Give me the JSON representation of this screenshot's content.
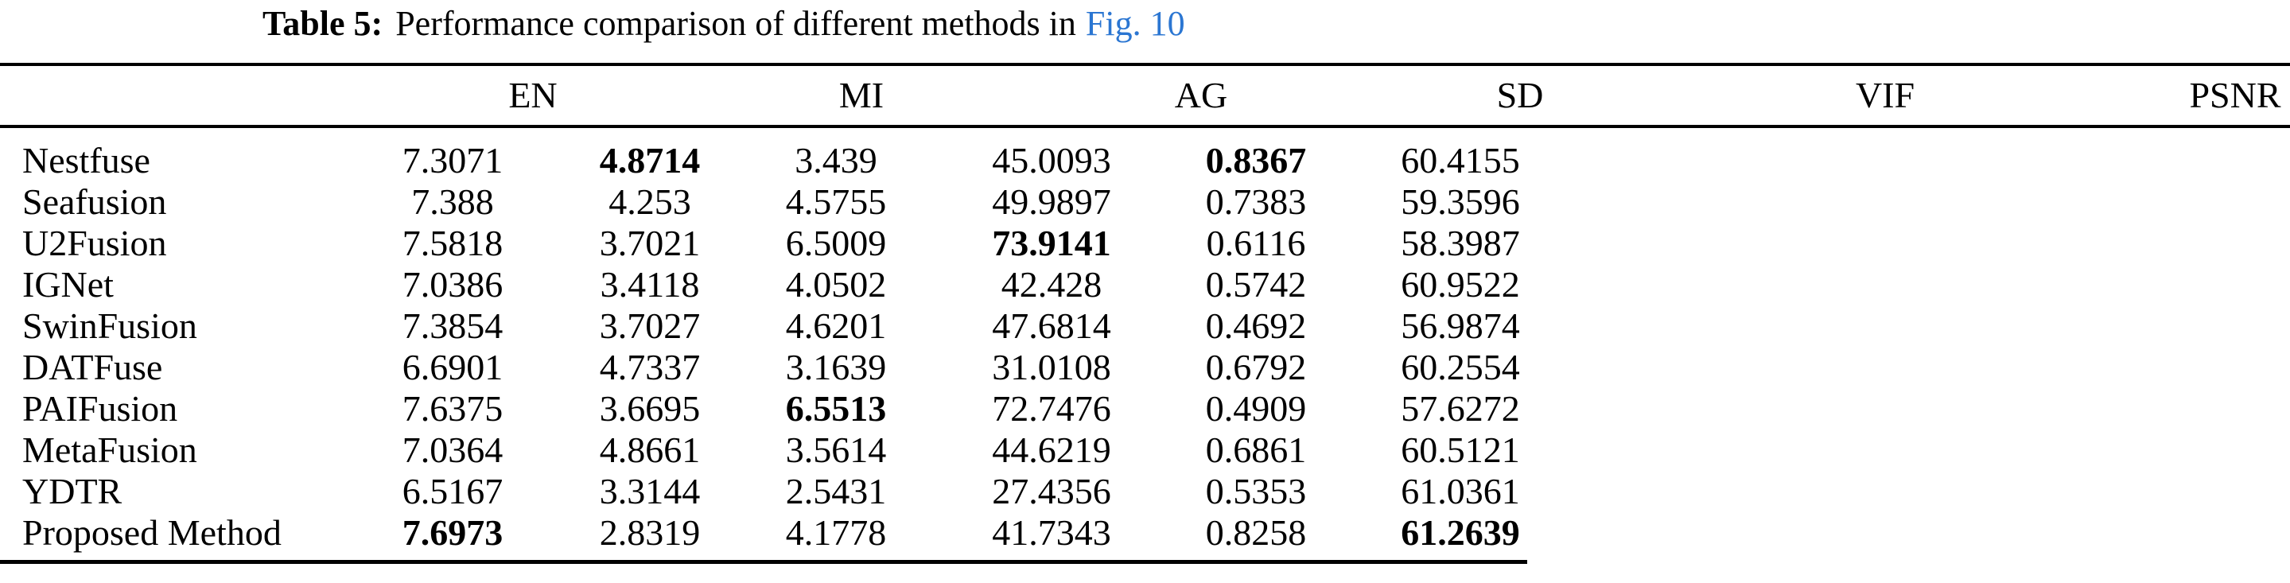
{
  "caption": {
    "label": "Table 5:",
    "text": "Performance comparison of different methods in",
    "link": "Fig. 10",
    "link_color": "#2b76d2"
  },
  "table": {
    "columns": [
      "EN",
      "MI",
      "AG",
      "SD",
      "VIF",
      "PSNR"
    ],
    "rows": [
      {
        "method": "Nestfuse",
        "values": [
          "7.3071",
          "4.8714",
          "3.439",
          "45.0093",
          "0.8367",
          "60.4155"
        ],
        "bold": [
          1,
          4
        ]
      },
      {
        "method": "Seafusion",
        "values": [
          "7.388",
          "4.253",
          "4.5755",
          "49.9897",
          "0.7383",
          "59.3596"
        ],
        "bold": []
      },
      {
        "method": "U2Fusion",
        "values": [
          "7.5818",
          "3.7021",
          "6.5009",
          "73.9141",
          "0.6116",
          "58.3987"
        ],
        "bold": [
          3
        ]
      },
      {
        "method": "IGNet",
        "values": [
          "7.0386",
          "3.4118",
          "4.0502",
          "42.428",
          "0.5742",
          "60.9522"
        ],
        "bold": []
      },
      {
        "method": "SwinFusion",
        "values": [
          "7.3854",
          "3.7027",
          "4.6201",
          "47.6814",
          "0.4692",
          "56.9874"
        ],
        "bold": []
      },
      {
        "method": "DATFuse",
        "values": [
          "6.6901",
          "4.7337",
          "3.1639",
          "31.0108",
          "0.6792",
          "60.2554"
        ],
        "bold": []
      },
      {
        "method": "PAIFusion",
        "values": [
          "7.6375",
          "3.6695",
          "6.5513",
          "72.7476",
          "0.4909",
          "57.6272"
        ],
        "bold": [
          2
        ]
      },
      {
        "method": "MetaFusion",
        "values": [
          "7.0364",
          "4.8661",
          "3.5614",
          "44.6219",
          "0.6861",
          "60.5121"
        ],
        "bold": []
      },
      {
        "method": "YDTR",
        "values": [
          "6.5167",
          "3.3144",
          "2.5431",
          "27.4356",
          "0.5353",
          "61.0361"
        ],
        "bold": []
      },
      {
        "method": "Proposed Method",
        "values": [
          "7.6973",
          "2.8319",
          "4.1778",
          "41.7343",
          "0.8258",
          "61.2639"
        ],
        "bold": [
          0,
          5
        ]
      }
    ]
  }
}
